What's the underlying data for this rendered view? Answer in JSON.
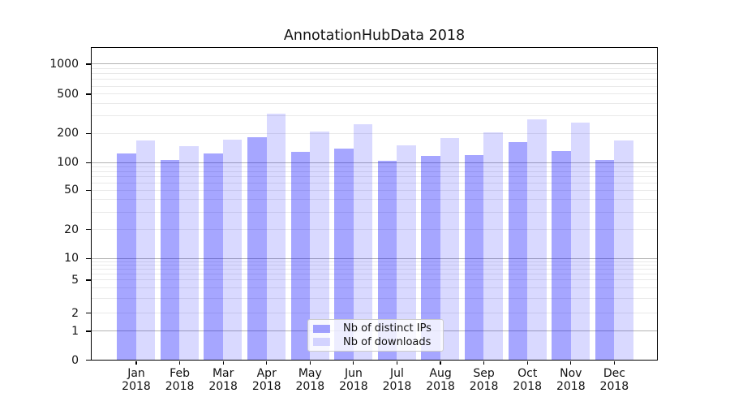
{
  "chart_data": {
    "type": "bar",
    "title": "AnnotationHubData 2018",
    "categories": [
      "Jan",
      "Feb",
      "Mar",
      "Apr",
      "May",
      "Jun",
      "Jul",
      "Aug",
      "Sep",
      "Oct",
      "Nov",
      "Dec"
    ],
    "category_year": "2018",
    "series": [
      {
        "name": "Nb of distinct IPs",
        "color": "#0000ff",
        "alpha": 0.35,
        "values": [
          125,
          107,
          125,
          183,
          129,
          140,
          104,
          117,
          119,
          162,
          130,
          107
        ]
      },
      {
        "name": "Nb of downloads",
        "color": "#0000ff",
        "alpha": 0.148,
        "values": [
          170,
          147,
          172,
          317,
          208,
          245,
          149,
          177,
          204,
          279,
          258,
          168
        ]
      }
    ],
    "xlabel": "",
    "ylabel": "",
    "yscale": "symlog",
    "ylim": [
      0,
      1500
    ],
    "ytick_labels": [
      "1000",
      "500",
      "200",
      "100",
      "50",
      "20",
      "10",
      "5",
      "2",
      "1",
      "0"
    ],
    "yticks": [
      1000,
      500,
      200,
      100,
      50,
      20,
      10,
      5,
      2,
      1,
      0
    ],
    "grid": true,
    "legend_position": "lower center"
  },
  "colors": {
    "bar_distinct_ips": "#a6a6ff",
    "bar_downloads": "#d9d9ff",
    "grid_major": "#b4b4b4",
    "grid_minor": "#e9e9e9",
    "axis_frame": "#000000",
    "legend_border": "#cccccc"
  }
}
